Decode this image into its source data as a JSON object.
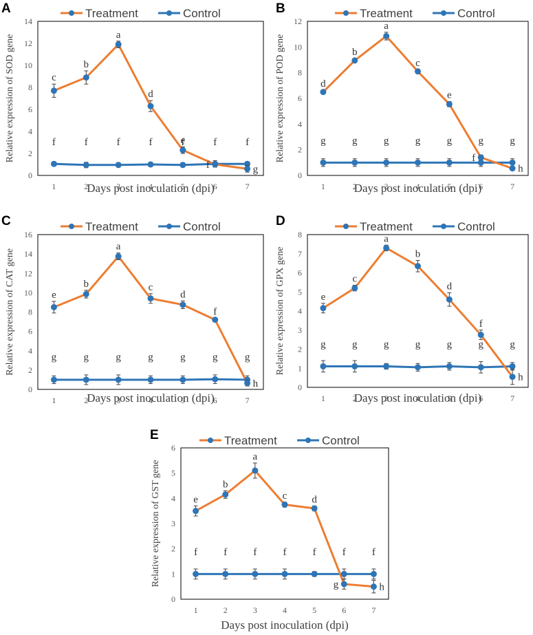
{
  "colors": {
    "treatment": "#ED7D31",
    "control": "#2E75B6",
    "marker": "#2E75B6",
    "error_bar": "#404040"
  },
  "chart_data": [
    {
      "id": "A",
      "type": "line",
      "panel_label": "A",
      "xlabel": "Days post inoculation (dpi)",
      "ylabel": "Relative expression of SOD gene",
      "categories": [
        "1",
        "2",
        "3",
        "4",
        "5",
        "6",
        "7"
      ],
      "ylim": [
        0,
        14
      ],
      "yticks": [
        "0",
        "2",
        "4",
        "6",
        "8",
        "10",
        "12",
        "14"
      ],
      "series": [
        {
          "name": "Treatment",
          "values": [
            7.7,
            8.9,
            11.9,
            6.3,
            2.3,
            1.0,
            0.6
          ],
          "errors": [
            0.6,
            0.6,
            0.3,
            0.5,
            0.3,
            0.2,
            0.3
          ],
          "letters": [
            "c",
            "b",
            "a",
            "d",
            "e",
            "f",
            "g"
          ]
        },
        {
          "name": "Control",
          "values": [
            1.05,
            0.95,
            0.95,
            1.0,
            0.95,
            1.05,
            1.05
          ],
          "errors": [
            0.2,
            0.25,
            0.2,
            0.2,
            0.2,
            0.3,
            0.2
          ],
          "letters": [
            "f",
            "f",
            "f",
            "f",
            "f",
            "f",
            "f"
          ]
        }
      ]
    },
    {
      "id": "B",
      "type": "line",
      "panel_label": "B",
      "xlabel": "Days post inoculation (dpi)",
      "ylabel": "Relative expression of POD gene",
      "categories": [
        "1",
        "2",
        "3",
        "4",
        "5",
        "6",
        "7"
      ],
      "ylim": [
        0,
        12
      ],
      "yticks": [
        "0",
        "2",
        "4",
        "6",
        "8",
        "10",
        "12"
      ],
      "series": [
        {
          "name": "Treatment",
          "values": [
            6.5,
            8.95,
            10.85,
            8.1,
            5.55,
            1.4,
            0.55
          ],
          "errors": [
            0.15,
            0.15,
            0.3,
            0.15,
            0.2,
            0.2,
            0.15
          ],
          "letters": [
            "d",
            "b",
            "a",
            "c",
            "e",
            "f",
            "h"
          ]
        },
        {
          "name": "Control",
          "values": [
            1.0,
            1.0,
            1.0,
            1.0,
            1.0,
            1.0,
            1.0
          ],
          "errors": [
            0.3,
            0.3,
            0.3,
            0.3,
            0.3,
            0.3,
            0.3
          ],
          "letters": [
            "g",
            "g",
            "g",
            "g",
            "g",
            "g",
            "g"
          ]
        }
      ]
    },
    {
      "id": "C",
      "type": "line",
      "panel_label": "C",
      "xlabel": "Days post inoculation (dpi)",
      "ylabel": "Relative expression of CAT gene",
      "categories": [
        "1",
        "2",
        "3",
        "4",
        "5",
        "6",
        "7"
      ],
      "ylim": [
        0,
        16
      ],
      "yticks": [
        "0",
        "2",
        "4",
        "6",
        "8",
        "10",
        "12",
        "14",
        "16"
      ],
      "series": [
        {
          "name": "Treatment",
          "values": [
            8.5,
            9.85,
            13.75,
            9.4,
            8.75,
            7.2,
            0.65
          ],
          "errors": [
            0.6,
            0.4,
            0.35,
            0.5,
            0.4,
            0.15,
            0.3
          ],
          "letters": [
            "e",
            "b",
            "a",
            "c",
            "d",
            "f",
            "h"
          ]
        },
        {
          "name": "Control",
          "values": [
            1.0,
            1.0,
            1.0,
            1.0,
            1.0,
            1.05,
            1.0
          ],
          "errors": [
            0.4,
            0.5,
            0.5,
            0.4,
            0.4,
            0.45,
            0.4
          ],
          "letters": [
            "g",
            "g",
            "g",
            "g",
            "g",
            "g",
            "g"
          ]
        }
      ]
    },
    {
      "id": "D",
      "type": "line",
      "panel_label": "D",
      "xlabel": "Days post inoculation (dpi)",
      "ylabel": "Relative expression of GPX gene",
      "categories": [
        "1",
        "2",
        "3",
        "4",
        "5",
        "6",
        "7"
      ],
      "ylim": [
        0,
        8
      ],
      "yticks": [
        "0",
        "1",
        "2",
        "3",
        "4",
        "5",
        "6",
        "7",
        "8"
      ],
      "series": [
        {
          "name": "Treatment",
          "values": [
            4.15,
            5.2,
            7.3,
            6.35,
            4.6,
            2.75,
            0.55
          ],
          "errors": [
            0.25,
            0.15,
            0.15,
            0.3,
            0.35,
            0.25,
            0.4
          ],
          "letters": [
            "e",
            "c",
            "a",
            "b",
            "d",
            "f",
            "h"
          ]
        },
        {
          "name": "Control",
          "values": [
            1.1,
            1.1,
            1.1,
            1.05,
            1.1,
            1.05,
            1.1
          ],
          "errors": [
            0.3,
            0.3,
            0.15,
            0.2,
            0.2,
            0.3,
            0.2
          ],
          "letters": [
            "g",
            "g",
            "g",
            "g",
            "g",
            "g",
            "g"
          ]
        }
      ]
    },
    {
      "id": "E",
      "type": "line",
      "panel_label": "E",
      "xlabel": "Days post inoculation (dpi)",
      "ylabel": "Relative expression of  GST gene",
      "categories": [
        "1",
        "2",
        "3",
        "4",
        "5",
        "6",
        "7"
      ],
      "ylim": [
        0,
        6
      ],
      "yticks": [
        "0",
        "1",
        "2",
        "3",
        "4",
        "5",
        "6"
      ],
      "series": [
        {
          "name": "Treatment",
          "values": [
            3.5,
            4.15,
            5.1,
            3.75,
            3.6,
            0.6,
            0.5
          ],
          "errors": [
            0.2,
            0.15,
            0.3,
            0.1,
            0.1,
            0.2,
            0.25
          ],
          "letters": [
            "e",
            "b",
            "a",
            "c",
            "d",
            "g",
            "h"
          ]
        },
        {
          "name": "Control",
          "values": [
            1.0,
            1.0,
            1.0,
            1.0,
            1.0,
            1.0,
            1.0
          ],
          "errors": [
            0.2,
            0.2,
            0.2,
            0.2,
            0.1,
            0.2,
            0.2
          ],
          "letters": [
            "f",
            "f",
            "f",
            "f",
            "f",
            "f",
            "f"
          ]
        }
      ]
    }
  ]
}
